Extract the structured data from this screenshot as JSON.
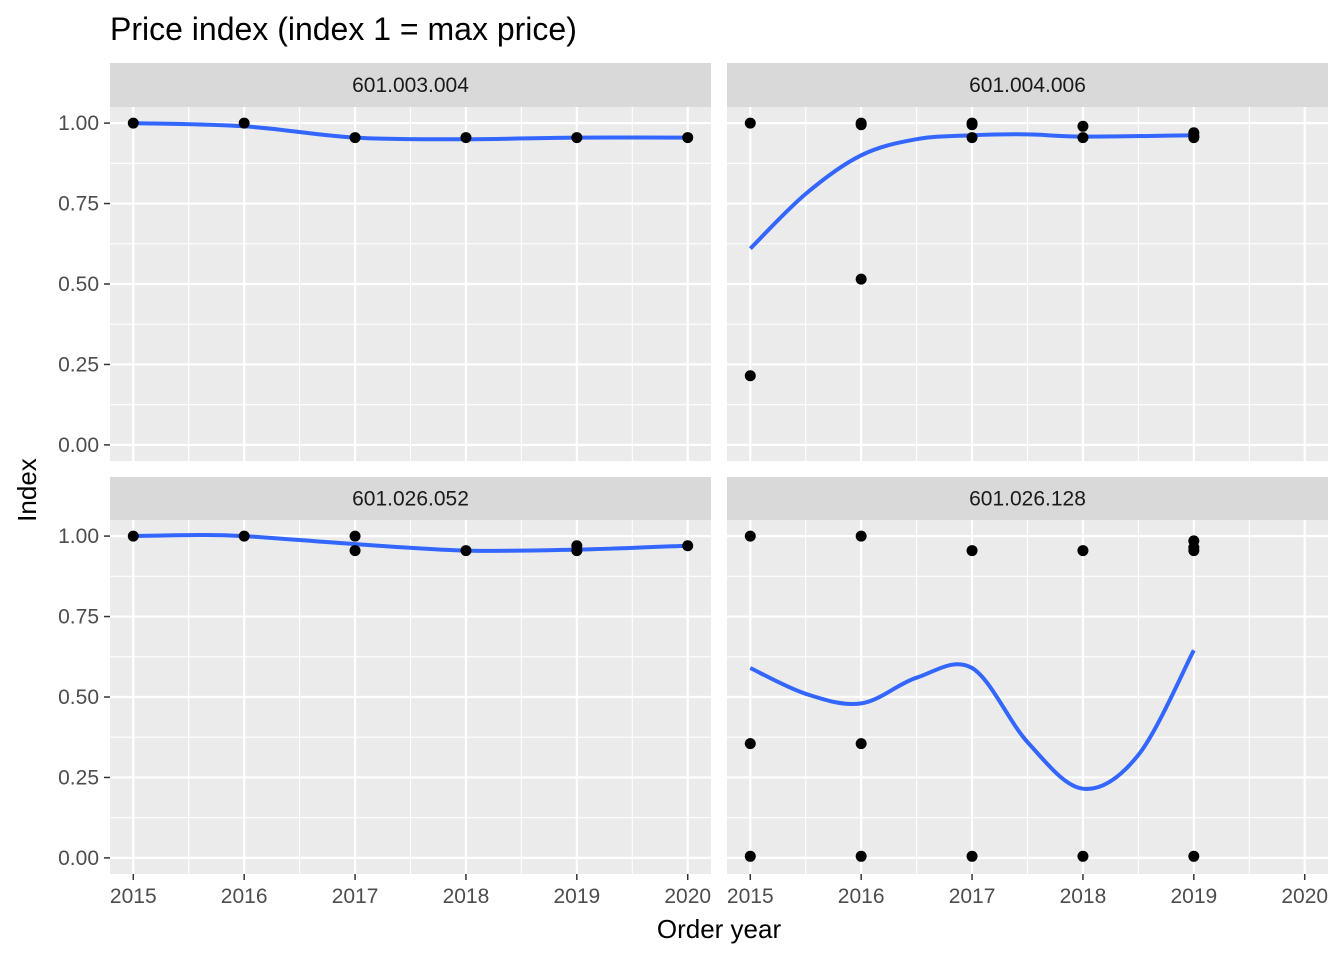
{
  "chart_data": {
    "type": "scatter",
    "title": "Price index (index 1 = max price)",
    "xlabel": "Order year",
    "ylabel": "Index",
    "xlim": [
      2014.79,
      2020.21
    ],
    "ylim": [
      -0.05,
      1.05
    ],
    "x_ticks": [
      2015,
      2016,
      2017,
      2018,
      2019,
      2020
    ],
    "y_ticks": [
      0.0,
      0.25,
      0.5,
      0.75,
      1.0
    ],
    "x_tick_labels": [
      "2015",
      "2016",
      "2017",
      "2018",
      "2019",
      "2020"
    ],
    "y_tick_labels": [
      "0.00",
      "0.25",
      "0.50",
      "0.75",
      "1.00"
    ],
    "colors": {
      "panel_bg": "#ebebeb",
      "strip_bg": "#d9d9d9",
      "grid": "#ffffff",
      "point": "#000000",
      "smooth_line": "#3366ff"
    },
    "panels": [
      {
        "name": "601.003.004",
        "points": [
          {
            "x": 2015,
            "y": 1.0
          },
          {
            "x": 2016,
            "y": 1.0
          },
          {
            "x": 2017,
            "y": 0.955
          },
          {
            "x": 2018,
            "y": 0.955
          },
          {
            "x": 2019,
            "y": 0.955
          },
          {
            "x": 2020,
            "y": 0.955
          }
        ],
        "smooth": [
          {
            "x": 2015,
            "y": 1.0
          },
          {
            "x": 2016,
            "y": 0.99
          },
          {
            "x": 2017,
            "y": 0.955
          },
          {
            "x": 2018,
            "y": 0.95
          },
          {
            "x": 2019,
            "y": 0.955
          },
          {
            "x": 2020,
            "y": 0.955
          }
        ]
      },
      {
        "name": "601.004.006",
        "points": [
          {
            "x": 2015,
            "y": 1.0
          },
          {
            "x": 2015,
            "y": 0.215
          },
          {
            "x": 2016,
            "y": 1.0
          },
          {
            "x": 2016,
            "y": 0.995
          },
          {
            "x": 2016,
            "y": 0.515
          },
          {
            "x": 2017,
            "y": 1.0
          },
          {
            "x": 2017,
            "y": 0.995
          },
          {
            "x": 2017,
            "y": 0.955
          },
          {
            "x": 2018,
            "y": 0.99
          },
          {
            "x": 2018,
            "y": 0.955
          },
          {
            "x": 2019,
            "y": 0.97
          },
          {
            "x": 2019,
            "y": 0.96
          },
          {
            "x": 2019,
            "y": 0.955
          }
        ],
        "smooth": [
          {
            "x": 2015,
            "y": 0.61
          },
          {
            "x": 2015.5,
            "y": 0.78
          },
          {
            "x": 2016,
            "y": 0.9
          },
          {
            "x": 2016.5,
            "y": 0.95
          },
          {
            "x": 2017,
            "y": 0.962
          },
          {
            "x": 2017.5,
            "y": 0.965
          },
          {
            "x": 2018,
            "y": 0.958
          },
          {
            "x": 2019,
            "y": 0.962
          }
        ]
      },
      {
        "name": "601.026.052",
        "points": [
          {
            "x": 2015,
            "y": 1.0
          },
          {
            "x": 2016,
            "y": 1.0
          },
          {
            "x": 2017,
            "y": 1.0
          },
          {
            "x": 2017,
            "y": 0.955
          },
          {
            "x": 2018,
            "y": 0.955
          },
          {
            "x": 2019,
            "y": 0.97
          },
          {
            "x": 2019,
            "y": 0.955
          },
          {
            "x": 2020,
            "y": 0.97
          }
        ],
        "smooth": [
          {
            "x": 2015,
            "y": 1.0
          },
          {
            "x": 2015.5,
            "y": 1.003
          },
          {
            "x": 2016,
            "y": 1.0
          },
          {
            "x": 2017,
            "y": 0.975
          },
          {
            "x": 2018,
            "y": 0.955
          },
          {
            "x": 2019,
            "y": 0.958
          },
          {
            "x": 2020,
            "y": 0.97
          }
        ]
      },
      {
        "name": "601.026.128",
        "points": [
          {
            "x": 2015,
            "y": 1.0
          },
          {
            "x": 2015,
            "y": 0.355
          },
          {
            "x": 2015,
            "y": 0.005
          },
          {
            "x": 2016,
            "y": 1.0
          },
          {
            "x": 2016,
            "y": 0.355
          },
          {
            "x": 2016,
            "y": 0.005
          },
          {
            "x": 2017,
            "y": 0.955
          },
          {
            "x": 2017,
            "y": 0.005
          },
          {
            "x": 2018,
            "y": 0.955
          },
          {
            "x": 2018,
            "y": 0.005
          },
          {
            "x": 2019,
            "y": 0.985
          },
          {
            "x": 2019,
            "y": 0.965
          },
          {
            "x": 2019,
            "y": 0.955
          },
          {
            "x": 2019,
            "y": 0.005
          }
        ],
        "smooth": [
          {
            "x": 2015,
            "y": 0.59
          },
          {
            "x": 2015.5,
            "y": 0.51
          },
          {
            "x": 2016,
            "y": 0.48
          },
          {
            "x": 2016.5,
            "y": 0.56
          },
          {
            "x": 2017,
            "y": 0.59
          },
          {
            "x": 2017.5,
            "y": 0.36
          },
          {
            "x": 2018,
            "y": 0.215
          },
          {
            "x": 2018.5,
            "y": 0.32
          },
          {
            "x": 2019,
            "y": 0.645
          }
        ]
      }
    ]
  }
}
